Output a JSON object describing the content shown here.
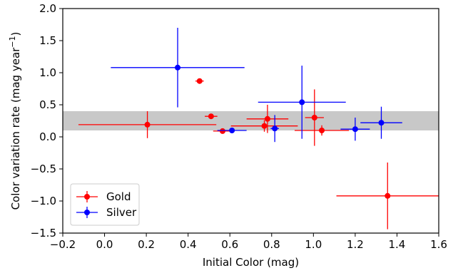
{
  "chart_data": {
    "type": "scatter",
    "title": "",
    "xlabel": "Initial Color (mag)",
    "ylabel_main": "Color variation rate (mag year",
    "ylabel_sup": "−1",
    "ylabel_close": ")",
    "xlim": [
      -0.2,
      1.6
    ],
    "ylim": [
      -1.5,
      2.0
    ],
    "x_ticks": [
      -0.2,
      0.0,
      0.2,
      0.4,
      0.6,
      0.8,
      1.0,
      1.2,
      1.4,
      1.6
    ],
    "x_tick_labels": [
      "−0.2",
      "0.0",
      "0.2",
      "0.4",
      "0.6",
      "0.8",
      "1.0",
      "1.2",
      "1.4",
      "1.6"
    ],
    "y_ticks": [
      -1.5,
      -1.0,
      -0.5,
      0.0,
      0.5,
      1.0,
      1.5,
      2.0
    ],
    "y_tick_labels": [
      "−1.5",
      "−1.0",
      "−0.5",
      "0.0",
      "0.5",
      "1.0",
      "1.5",
      "2.0"
    ],
    "grid": false,
    "legend_position": "lower-left",
    "shaded_band": {
      "y_min": 0.1,
      "y_max": 0.4,
      "color": "#c8c8c8"
    },
    "series": [
      {
        "name": "Gold",
        "color": "#ff0000",
        "points": [
          {
            "x": 0.205,
            "y": 0.19,
            "xerr": 0.33,
            "yerr": 0.21
          },
          {
            "x": 0.455,
            "y": 0.87,
            "xerr": 0.02,
            "yerr": 0.04
          },
          {
            "x": 0.51,
            "y": 0.32,
            "xerr": 0.03,
            "yerr": 0.02
          },
          {
            "x": 0.565,
            "y": 0.09,
            "xerr": 0.045,
            "yerr": 0.03
          },
          {
            "x": 0.765,
            "y": 0.17,
            "xerr": 0.16,
            "yerr": 0.09
          },
          {
            "x": 0.78,
            "y": 0.28,
            "xerr": 0.1,
            "yerr": 0.22
          },
          {
            "x": 1.005,
            "y": 0.3,
            "xerr": 0.045,
            "yerr": 0.44
          },
          {
            "x": 1.04,
            "y": 0.1,
            "xerr": 0.13,
            "yerr": 0.08
          },
          {
            "x": 1.355,
            "y": -0.92,
            "xerr": 0.245,
            "yerr": 0.52
          }
        ]
      },
      {
        "name": "Silver",
        "color": "#0000ff",
        "points": [
          {
            "x": 0.35,
            "y": 1.08,
            "xerr": 0.32,
            "yerr": 0.62
          },
          {
            "x": 0.61,
            "y": 0.1,
            "xerr": 0.07,
            "yerr": 0.03
          },
          {
            "x": 0.815,
            "y": 0.13,
            "xerr": 0.02,
            "yerr": 0.21
          },
          {
            "x": 0.945,
            "y": 0.54,
            "xerr": 0.21,
            "yerr": 0.57
          },
          {
            "x": 1.2,
            "y": 0.12,
            "xerr": 0.07,
            "yerr": 0.18
          },
          {
            "x": 1.325,
            "y": 0.22,
            "xerr": 0.1,
            "yerr": 0.25
          }
        ]
      }
    ]
  }
}
